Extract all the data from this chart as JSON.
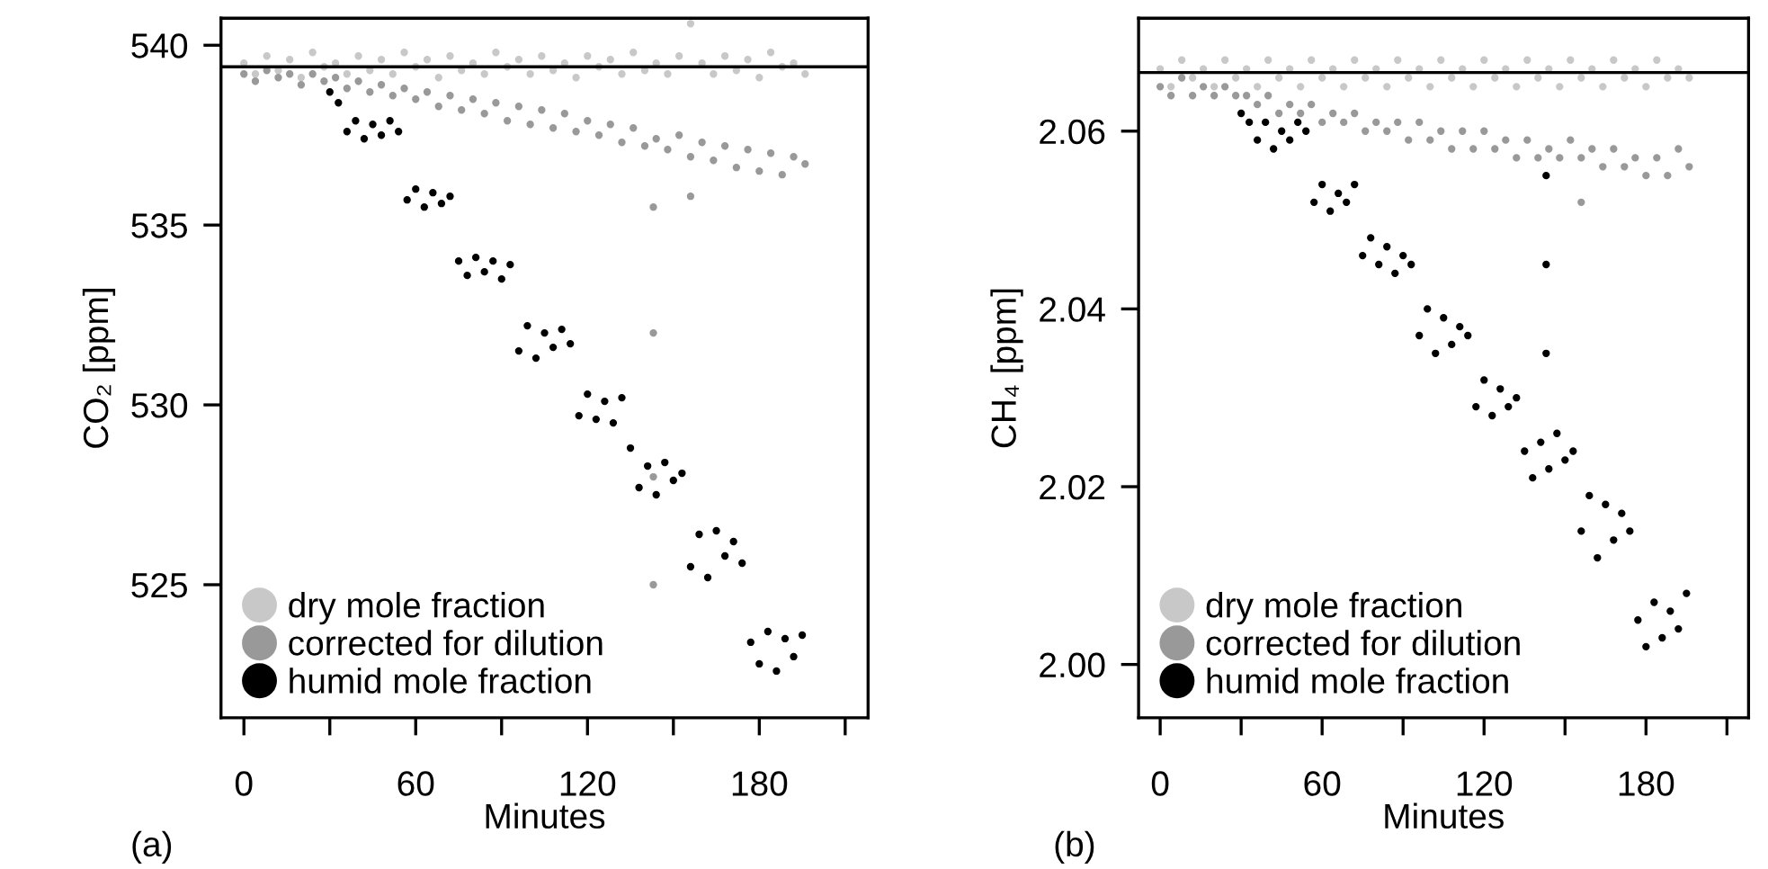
{
  "chart_data": [
    {
      "type": "scatter",
      "xlabel": "Minutes",
      "ylabel": "CO₂ [ppm]",
      "annotations": [
        "(a)"
      ],
      "xlim": [
        -8,
        218
      ],
      "ylim": [
        521.3,
        540.75
      ],
      "xticks": [
        0,
        {
          "value": 30,
          "label": null
        },
        60,
        {
          "value": 90,
          "label": null
        },
        120,
        {
          "value": 150,
          "label": null
        },
        180,
        {
          "value": 210,
          "label": null
        }
      ],
      "yticks": [
        525,
        530,
        535,
        540
      ],
      "ref_lines": [
        {
          "axis": "y",
          "value": 539.4,
          "color": "#000000"
        }
      ],
      "legend": "bottom left",
      "marker": "circle",
      "grid": false,
      "series": [
        {
          "name": "dry mole fraction",
          "color": "#c8c8c8",
          "x": [
            0,
            4,
            8,
            12,
            16,
            20,
            24,
            28,
            32,
            36,
            40,
            44,
            48,
            52,
            56,
            60,
            64,
            68,
            72,
            76,
            80,
            84,
            88,
            92,
            96,
            100,
            104,
            108,
            112,
            116,
            120,
            124,
            128,
            132,
            136,
            140,
            144,
            148,
            152,
            156,
            160,
            164,
            168,
            172,
            176,
            180,
            184,
            188,
            192,
            196
          ],
          "values": [
            539.5,
            539.2,
            539.7,
            539.3,
            539.6,
            539.1,
            539.8,
            539.4,
            539.5,
            539.2,
            539.7,
            539.3,
            539.6,
            539.2,
            539.8,
            539.4,
            539.6,
            539.1,
            539.7,
            539.3,
            539.5,
            539.2,
            539.8,
            539.4,
            539.6,
            539.2,
            539.7,
            539.3,
            539.5,
            539.1,
            539.7,
            539.4,
            539.6,
            539.2,
            539.8,
            539.3,
            539.5,
            539.2,
            539.7,
            540.6,
            539.5,
            539.2,
            539.7,
            539.3,
            539.6,
            539.1,
            539.8,
            539.4,
            539.5,
            539.2
          ]
        },
        {
          "name": "corrected for dilution",
          "color": "#999999",
          "x": [
            0,
            4,
            8,
            12,
            16,
            20,
            24,
            28,
            32,
            36,
            40,
            44,
            48,
            52,
            56,
            60,
            64,
            68,
            72,
            76,
            80,
            84,
            88,
            92,
            96,
            100,
            104,
            108,
            112,
            116,
            120,
            124,
            128,
            132,
            136,
            140,
            143,
            143,
            143,
            143,
            144,
            148,
            152,
            156,
            156,
            160,
            164,
            168,
            172,
            176,
            180,
            184,
            188,
            192,
            196
          ],
          "values": [
            539.2,
            539.0,
            539.3,
            539.1,
            539.2,
            538.9,
            539.2,
            539.0,
            539.1,
            538.8,
            539.0,
            538.7,
            538.9,
            538.6,
            538.8,
            538.5,
            538.7,
            538.3,
            538.6,
            538.2,
            538.5,
            538.1,
            538.4,
            537.9,
            538.3,
            537.8,
            538.2,
            537.7,
            538.1,
            537.6,
            537.9,
            537.5,
            537.8,
            537.3,
            537.7,
            537.2,
            535.5,
            532.0,
            528.0,
            525.0,
            537.4,
            537.1,
            537.5,
            536.9,
            535.8,
            537.3,
            536.8,
            537.2,
            536.6,
            537.1,
            536.5,
            537.0,
            536.4,
            536.9,
            536.7
          ]
        },
        {
          "name": "humid mole fraction",
          "color": "#000000",
          "x": [
            30,
            33,
            36,
            39,
            42,
            45,
            48,
            51,
            54,
            57,
            60,
            63,
            66,
            69,
            72,
            75,
            78,
            81,
            84,
            87,
            90,
            93,
            96,
            99,
            102,
            105,
            108,
            111,
            114,
            117,
            120,
            123,
            126,
            129,
            132,
            135,
            138,
            141,
            144,
            147,
            150,
            153,
            156,
            159,
            162,
            165,
            168,
            171,
            174,
            177,
            180,
            183,
            186,
            189,
            192,
            195
          ],
          "values": [
            538.7,
            538.4,
            537.6,
            537.9,
            537.4,
            537.8,
            537.5,
            537.9,
            537.6,
            535.7,
            536.0,
            535.5,
            535.9,
            535.6,
            535.8,
            534.0,
            533.6,
            534.1,
            533.7,
            534.0,
            533.5,
            533.9,
            531.5,
            532.2,
            531.3,
            532.0,
            531.6,
            532.1,
            531.7,
            529.7,
            530.3,
            529.6,
            530.1,
            529.5,
            530.2,
            528.8,
            527.7,
            528.3,
            527.5,
            528.4,
            527.9,
            528.1,
            525.5,
            526.4,
            525.2,
            526.5,
            525.8,
            526.2,
            525.6,
            523.4,
            522.8,
            523.7,
            522.6,
            523.5,
            523.0,
            523.6
          ]
        }
      ]
    },
    {
      "type": "scatter",
      "xlabel": "Minutes",
      "ylabel": "CH₄ [ppm]",
      "annotations": [
        "(b)"
      ],
      "xlim": [
        -8,
        218
      ],
      "ylim": [
        1.994,
        2.0727
      ],
      "xticks": [
        0,
        {
          "value": 30,
          "label": null
        },
        60,
        {
          "value": 90,
          "label": null
        },
        120,
        {
          "value": 150,
          "label": null
        },
        180,
        {
          "value": 210,
          "label": null
        }
      ],
      "yticks": [
        {
          "value": 2.0,
          "label": "2.00"
        },
        {
          "value": 2.02,
          "label": "2.02"
        },
        {
          "value": 2.04,
          "label": "2.04"
        },
        {
          "value": 2.06,
          "label": "2.06"
        }
      ],
      "ref_lines": [
        {
          "axis": "y",
          "value": 2.0666,
          "color": "#000000"
        }
      ],
      "legend": "bottom left",
      "marker": "circle",
      "grid": false,
      "series": [
        {
          "name": "dry mole fraction",
          "color": "#c8c8c8",
          "x": [
            0,
            4,
            8,
            12,
            16,
            20,
            24,
            28,
            32,
            36,
            40,
            44,
            48,
            52,
            56,
            60,
            64,
            68,
            72,
            76,
            80,
            84,
            88,
            92,
            96,
            100,
            104,
            108,
            112,
            116,
            120,
            124,
            128,
            132,
            136,
            140,
            144,
            148,
            152,
            156,
            160,
            164,
            168,
            172,
            176,
            180,
            184,
            188,
            192,
            196
          ],
          "values": [
            2.067,
            2.065,
            2.068,
            2.066,
            2.067,
            2.065,
            2.068,
            2.066,
            2.067,
            2.065,
            2.068,
            2.066,
            2.067,
            2.065,
            2.068,
            2.066,
            2.067,
            2.065,
            2.068,
            2.066,
            2.067,
            2.065,
            2.068,
            2.066,
            2.067,
            2.065,
            2.068,
            2.066,
            2.067,
            2.065,
            2.068,
            2.066,
            2.067,
            2.065,
            2.068,
            2.066,
            2.067,
            2.065,
            2.068,
            2.066,
            2.067,
            2.065,
            2.068,
            2.066,
            2.067,
            2.065,
            2.068,
            2.066,
            2.067,
            2.066
          ]
        },
        {
          "name": "corrected for dilution",
          "color": "#999999",
          "x": [
            0,
            4,
            8,
            12,
            16,
            20,
            24,
            28,
            32,
            36,
            40,
            44,
            48,
            52,
            56,
            60,
            64,
            68,
            72,
            76,
            80,
            84,
            88,
            92,
            96,
            100,
            104,
            108,
            112,
            116,
            120,
            124,
            128,
            132,
            136,
            140,
            144,
            148,
            152,
            156,
            156,
            160,
            164,
            168,
            172,
            176,
            180,
            184,
            188,
            192,
            196
          ],
          "values": [
            2.065,
            2.064,
            2.066,
            2.064,
            2.065,
            2.064,
            2.065,
            2.064,
            2.064,
            2.063,
            2.064,
            2.062,
            2.063,
            2.062,
            2.063,
            2.061,
            2.062,
            2.061,
            2.062,
            2.06,
            2.061,
            2.06,
            2.061,
            2.059,
            2.061,
            2.059,
            2.06,
            2.058,
            2.06,
            2.058,
            2.06,
            2.058,
            2.059,
            2.057,
            2.059,
            2.057,
            2.058,
            2.057,
            2.059,
            2.057,
            2.052,
            2.058,
            2.056,
            2.058,
            2.056,
            2.057,
            2.055,
            2.057,
            2.055,
            2.058,
            2.056
          ]
        },
        {
          "name": "humid mole fraction",
          "color": "#000000",
          "x": [
            30,
            33,
            36,
            39,
            42,
            45,
            48,
            51,
            54,
            57,
            60,
            63,
            66,
            69,
            72,
            75,
            78,
            81,
            84,
            87,
            90,
            93,
            96,
            99,
            102,
            105,
            108,
            111,
            114,
            117,
            120,
            123,
            126,
            129,
            132,
            135,
            138,
            141,
            143,
            143,
            143,
            144,
            147,
            150,
            153,
            156,
            159,
            162,
            165,
            168,
            171,
            174,
            177,
            180,
            183,
            186,
            189,
            192,
            195
          ],
          "values": [
            2.062,
            2.061,
            2.059,
            2.061,
            2.058,
            2.06,
            2.059,
            2.061,
            2.06,
            2.052,
            2.054,
            2.051,
            2.053,
            2.052,
            2.054,
            2.046,
            2.048,
            2.045,
            2.047,
            2.044,
            2.046,
            2.045,
            2.037,
            2.04,
            2.035,
            2.039,
            2.036,
            2.038,
            2.037,
            2.029,
            2.032,
            2.028,
            2.031,
            2.029,
            2.03,
            2.024,
            2.021,
            2.025,
            2.055,
            2.045,
            2.035,
            2.022,
            2.026,
            2.023,
            2.024,
            2.015,
            2.019,
            2.012,
            2.018,
            2.014,
            2.017,
            2.015,
            2.005,
            2.002,
            2.007,
            2.003,
            2.006,
            2.004,
            2.008
          ]
        }
      ]
    }
  ]
}
